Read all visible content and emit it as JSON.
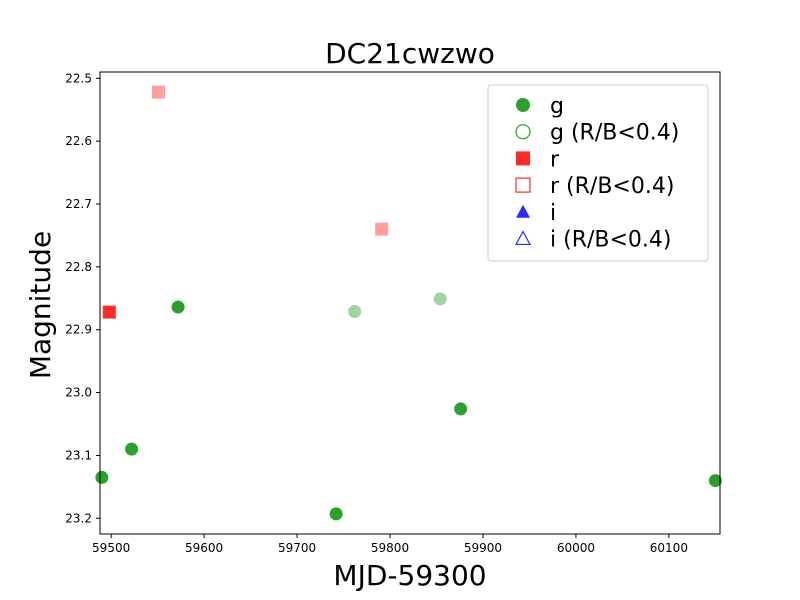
{
  "chart_data": {
    "type": "scatter",
    "title": "DC21cwzwo",
    "xlabel": "MJD-59300",
    "ylabel": "Magnitude",
    "xlim": [
      59488,
      60155
    ],
    "ylim": [
      23.225,
      22.49
    ],
    "y_inverted": true,
    "xticks": [
      59500,
      59600,
      59700,
      59800,
      59900,
      60000,
      60100
    ],
    "yticks": [
      22.5,
      22.6,
      22.7,
      22.8,
      22.9,
      23.0,
      23.1,
      23.2
    ],
    "ytick_labels": [
      "22.5",
      "22.6",
      "22.7",
      "22.8",
      "22.9",
      "23.0",
      "23.1",
      "23.2"
    ],
    "legend_position": "top-right",
    "colors": {
      "g": "#2ca02c",
      "r": "#ff2a2a",
      "i": "#2a2aff"
    },
    "series": [
      {
        "name": "g",
        "marker": "circle",
        "filled": true,
        "alpha": 1.0,
        "color": "#2ca02c",
        "points": [
          {
            "x": 59490,
            "y": 23.135
          },
          {
            "x": 59522,
            "y": 23.09
          },
          {
            "x": 59572,
            "y": 22.864
          },
          {
            "x": 59742,
            "y": 23.193
          },
          {
            "x": 59876,
            "y": 23.026
          },
          {
            "x": 60150,
            "y": 23.14
          }
        ]
      },
      {
        "name": "g (R/B<0.4)",
        "marker": "circle",
        "filled": true,
        "alpha": 0.45,
        "color": "#2ca02c",
        "points": [
          {
            "x": 59762,
            "y": 22.871
          },
          {
            "x": 59854,
            "y": 22.851
          }
        ]
      },
      {
        "name": "r",
        "marker": "square",
        "filled": true,
        "alpha": 1.0,
        "color": "#ff2a2a",
        "points": [
          {
            "x": 59498,
            "y": 22.872
          }
        ]
      },
      {
        "name": "r (R/B<0.4)",
        "marker": "square",
        "filled": true,
        "alpha": 0.45,
        "color": "#ff2a2a",
        "points": [
          {
            "x": 59551,
            "y": 22.522
          },
          {
            "x": 59791,
            "y": 22.74
          }
        ]
      },
      {
        "name": "i",
        "marker": "triangle",
        "filled": true,
        "alpha": 1.0,
        "color": "#2a2aff",
        "points": []
      },
      {
        "name": "i (R/B<0.4)",
        "marker": "triangle",
        "filled": false,
        "alpha": 1.0,
        "color": "#2a2aff",
        "points": []
      }
    ],
    "legend": [
      {
        "label": "g",
        "marker": "circle",
        "filled": true,
        "color": "#2ca02c"
      },
      {
        "label": "g (R/B<0.4)",
        "marker": "circle",
        "filled": false,
        "color": "#2ca02c"
      },
      {
        "label": "r",
        "marker": "square",
        "filled": true,
        "color": "#ff2a2a"
      },
      {
        "label": "r (R/B<0.4)",
        "marker": "square",
        "filled": false,
        "color": "#ff2a2a"
      },
      {
        "label": "i",
        "marker": "triangle",
        "filled": true,
        "color": "#2a2aff"
      },
      {
        "label": "i (R/B<0.4)",
        "marker": "triangle",
        "filled": false,
        "color": "#2a2aff"
      }
    ]
  }
}
